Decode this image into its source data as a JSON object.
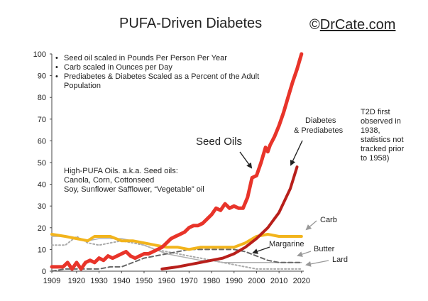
{
  "title": "PUFA-Driven Diabetes",
  "credit": {
    "prefix": "©",
    "name": "DrCate.com"
  },
  "notes": [
    "Seed oil scaled in Pounds Per Person Per Year",
    "Carb scaled in Ounces per Day",
    "Prediabetes & Diabetes Scaled as a Percent of the Adult Population"
  ],
  "t2d_note": "T2D first observed in 1938, statistics not tracked prior to 1958)",
  "annotations": {
    "seed_oils": "Seed Oils",
    "diabetes_line1": "Diabetes",
    "diabetes_line2": "& Prediabetes",
    "high_pufa_line1": "High-PUFA Oils. a.k.a. Seed oils:",
    "high_pufa_line2": "Canola, Corn, Cottonseed",
    "high_pufa_line3": "Soy, Sunflower Safflower, “Vegetable” oil",
    "carb": "Carb",
    "margarine": "Margarine",
    "butter": "Butter",
    "lard": "Lard"
  },
  "colors": {
    "seed_oils": "#e8342a",
    "diabetes": "#b81f1b",
    "carb": "#f2b41c",
    "margarine": "#666666",
    "butter": "#b0b0b0",
    "lard": "#aaaaaa",
    "arrow": "#222222",
    "gray_arrow": "#999999"
  },
  "chart_data": {
    "type": "line",
    "xlim": [
      1909,
      2021
    ],
    "ylim": [
      0,
      100
    ],
    "x_ticks": [
      1909,
      1920,
      1930,
      1940,
      1950,
      1960,
      1970,
      1980,
      1990,
      2000,
      2010,
      2020
    ],
    "y_ticks": [
      0,
      10,
      20,
      30,
      40,
      50,
      60,
      70,
      80,
      90,
      100
    ],
    "grid": false,
    "series": [
      {
        "name": "Seed Oils",
        "style": "solid",
        "width": 5,
        "x": [
          1909,
          1912,
          1914,
          1916,
          1918,
          1920,
          1922,
          1924,
          1926,
          1928,
          1930,
          1932,
          1934,
          1936,
          1938,
          1940,
          1942,
          1944,
          1946,
          1948,
          1950,
          1952,
          1954,
          1956,
          1958,
          1960,
          1962,
          1964,
          1966,
          1968,
          1970,
          1972,
          1974,
          1976,
          1978,
          1980,
          1982,
          1984,
          1986,
          1988,
          1990,
          1992,
          1994,
          1996,
          1998,
          2000,
          2002,
          2004,
          2005,
          2006,
          2008,
          2010,
          2012,
          2014,
          2016,
          2018,
          2020
        ],
        "y": [
          2,
          2,
          2,
          4,
          1,
          4,
          1,
          4,
          5,
          4,
          6,
          5,
          7,
          6,
          7,
          8,
          9,
          7,
          6,
          7,
          8,
          8,
          9,
          10,
          11,
          13,
          15,
          16,
          17,
          18,
          20,
          21,
          21,
          22,
          24,
          26,
          29,
          28,
          31,
          29,
          30,
          29,
          29,
          34,
          43,
          44,
          50,
          57,
          55,
          58,
          62,
          67,
          73,
          80,
          87,
          93,
          100
        ]
      },
      {
        "name": "Diabetes & Prediabetes",
        "style": "solid",
        "width": 4,
        "x": [
          1958,
          1965,
          1970,
          1975,
          1980,
          1985,
          1990,
          1995,
          2000,
          2005,
          2010,
          2015,
          2018
        ],
        "y": [
          1,
          2,
          3,
          4,
          5,
          6,
          8,
          11,
          15,
          20,
          27,
          38,
          48
        ]
      },
      {
        "name": "Carb",
        "style": "solid",
        "width": 4,
        "x": [
          1909,
          1915,
          1920,
          1925,
          1928,
          1930,
          1935,
          1940,
          1945,
          1950,
          1955,
          1960,
          1965,
          1970,
          1975,
          1980,
          1985,
          1990,
          1995,
          2000,
          2005,
          2010,
          2015,
          2020
        ],
        "y": [
          17,
          16,
          15,
          14,
          16,
          16,
          16,
          14,
          14,
          13,
          12,
          11,
          11,
          10,
          11,
          11,
          11,
          11,
          13,
          16,
          17,
          16,
          16,
          16
        ]
      },
      {
        "name": "Margarine",
        "style": "dashed",
        "width": 2,
        "x": [
          1909,
          1915,
          1920,
          1925,
          1930,
          1935,
          1940,
          1945,
          1950,
          1955,
          1960,
          1965,
          1970,
          1975,
          1980,
          1985,
          1990,
          1995,
          2000,
          2005,
          2010,
          2015,
          2020
        ],
        "y": [
          0,
          1,
          1,
          1,
          1,
          2,
          2,
          4,
          6,
          7,
          8,
          9,
          10,
          10,
          10,
          10,
          10,
          9,
          7,
          5,
          4,
          4,
          4
        ]
      },
      {
        "name": "Butter",
        "style": "solid",
        "width": 1.5,
        "x": [
          1909,
          1915,
          1920,
          1925,
          1930,
          1935,
          1940,
          1945,
          1950,
          1955,
          1960,
          1965,
          1970,
          1975,
          1980,
          1985,
          1990,
          1995,
          2000,
          2005,
          2010,
          2015,
          2020
        ],
        "y": [
          16,
          16,
          15,
          14,
          15,
          15,
          15,
          14,
          12,
          10,
          8,
          7,
          6,
          5,
          5,
          4,
          4,
          4,
          4,
          4,
          4,
          4,
          4
        ]
      },
      {
        "name": "Lard",
        "style": "dotted",
        "width": 2,
        "x": [
          1909,
          1915,
          1920,
          1925,
          1930,
          1935,
          1940,
          1945,
          1950,
          1955,
          1960,
          1965,
          1970,
          1975,
          1980,
          1985,
          1990,
          1995,
          2000,
          2005,
          2010,
          2015,
          2020
        ],
        "y": [
          12,
          12,
          16,
          13,
          12,
          13,
          14,
          13,
          12,
          10,
          9,
          8,
          7,
          6,
          5,
          4,
          3,
          2,
          1,
          1,
          1,
          1,
          1
        ]
      }
    ]
  }
}
